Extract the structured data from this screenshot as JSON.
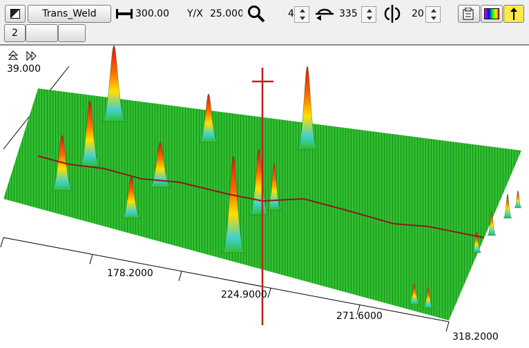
{
  "toolbar": {
    "mode_button": "Trans_Weld",
    "length": "300.00",
    "ratio_label": "Y/X",
    "ratio": "25.000",
    "zoom": "4",
    "angle": "335",
    "tilt": "20",
    "page_button": "2"
  },
  "plot": {
    "axis_labels": [
      "39.000",
      "178.2000",
      "224.9000",
      "271.6000",
      "318.2000"
    ]
  }
}
